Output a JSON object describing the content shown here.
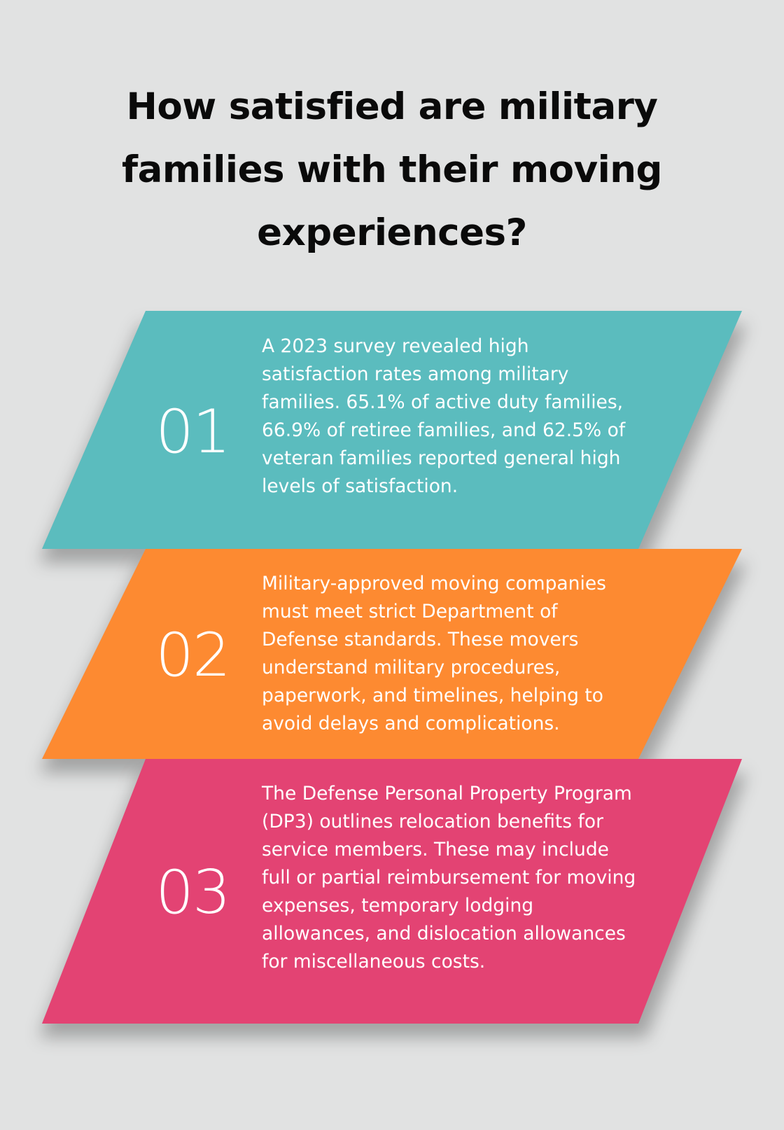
{
  "title": "How satisfied are military families with their moving experiences?",
  "colors": {
    "background": "#e1e2e2",
    "step_1": "#5bbcbe",
    "step_2": "#fd8a31",
    "step_3": "#e34373"
  },
  "steps": [
    {
      "number": "01",
      "text": "A 2023 survey revealed high satisfaction rates among military families. 65.1% of active duty families, 66.9% of retiree families, and 62.5% of veteran families reported general high levels of satisfaction."
    },
    {
      "number": "02",
      "text": "Military-approved moving companies must meet strict Department of Defense standards. These movers understand military procedures, paperwork, and timelines, helping to avoid delays and complications."
    },
    {
      "number": "03",
      "text": "The Defense Personal Property Program (DP3) outlines relocation benefits for service members. These may include full or partial reimbursement for moving expenses, temporary lodging allowances, and dislocation allowances for miscellaneous costs."
    }
  ]
}
